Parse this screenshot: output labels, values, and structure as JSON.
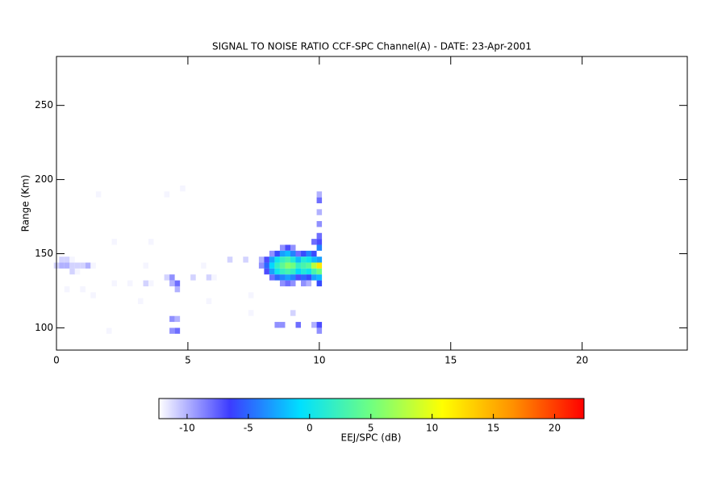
{
  "chart_data": {
    "type": "heatmap",
    "title": "SIGNAL TO NOISE RATIO CCF-SPC Channel(A) - DATE: 23-Apr-2001",
    "ylabel": "Range (Km)",
    "colorbar_label": "EEJ/SPC (dB)",
    "xlim": [
      0,
      24
    ],
    "xticks": [
      0,
      5,
      10,
      15,
      20
    ],
    "ylim": [
      85,
      283
    ],
    "yticks": [
      100,
      150,
      200,
      250
    ],
    "clim": [
      -12.3,
      22.4
    ],
    "cticks": [
      -10,
      -5,
      0,
      5,
      10,
      15,
      20
    ],
    "colormap": [
      "#ffffff",
      "#3c3cff",
      "#00e0ff",
      "#70ff80",
      "#ffff00",
      "#ff9000",
      "#ff0000"
    ],
    "x": [
      1.6,
      4.2,
      10.0,
      4.8,
      10.0,
      10.0,
      10.0,
      10.0,
      2.2,
      3.6,
      9.8,
      10.0,
      8.6,
      8.8,
      9.0,
      10.0,
      8.2,
      8.4,
      8.6,
      8.8,
      9.0,
      9.2,
      9.4,
      9.6,
      9.8,
      0.2,
      0.4,
      0.6,
      6.6,
      7.2,
      7.8,
      8.0,
      8.2,
      8.4,
      8.6,
      8.8,
      9.0,
      9.2,
      9.4,
      9.6,
      9.8,
      10.0,
      0.0,
      0.2,
      0.4,
      0.6,
      0.8,
      1.0,
      1.2,
      1.4,
      3.4,
      5.6,
      7.8,
      8.0,
      8.2,
      8.4,
      8.6,
      8.8,
      9.0,
      9.2,
      9.4,
      9.6,
      9.8,
      10.0,
      0.6,
      0.8,
      8.0,
      8.2,
      8.4,
      8.6,
      8.8,
      9.0,
      9.2,
      9.4,
      9.6,
      9.8,
      10.0,
      4.2,
      4.4,
      5.2,
      5.8,
      6.0,
      8.2,
      8.4,
      8.6,
      8.8,
      9.0,
      9.2,
      9.4,
      9.6,
      9.8,
      10.0,
      2.2,
      2.8,
      3.4,
      3.6,
      4.4,
      4.6,
      8.6,
      8.8,
      9.0,
      9.4,
      9.6,
      10.0,
      0.4,
      1.0,
      4.6,
      1.4,
      7.4,
      3.2,
      5.8,
      7.4,
      9.0,
      4.4,
      4.6,
      8.4,
      8.6,
      9.2,
      9.8,
      10.0,
      2.0,
      4.4,
      4.6,
      10.0
    ],
    "y": [
      190,
      190,
      190,
      194,
      186,
      178,
      170,
      162,
      158,
      158,
      158,
      158,
      154,
      154,
      154,
      154,
      150,
      150,
      150,
      150,
      150,
      150,
      150,
      150,
      150,
      146,
      146,
      146,
      146,
      146,
      146,
      146,
      146,
      146,
      146,
      146,
      146,
      146,
      146,
      146,
      146,
      146,
      142,
      142,
      142,
      142,
      142,
      142,
      142,
      142,
      142,
      142,
      142,
      142,
      142,
      142,
      142,
      142,
      142,
      142,
      142,
      142,
      142,
      142,
      138,
      138,
      138,
      138,
      138,
      138,
      138,
      138,
      138,
      138,
      138,
      138,
      138,
      134,
      134,
      134,
      134,
      134,
      134,
      134,
      134,
      134,
      134,
      134,
      134,
      134,
      134,
      134,
      130,
      130,
      130,
      130,
      130,
      130,
      130,
      130,
      130,
      130,
      130,
      130,
      126,
      126,
      126,
      122,
      122,
      118,
      118,
      110,
      110,
      106,
      106,
      102,
      102,
      102,
      102,
      102,
      98,
      98,
      98,
      98
    ],
    "values": [
      -12,
      -12,
      -10,
      -12,
      -8,
      -10,
      -9,
      -8,
      -12,
      -12,
      -8,
      -7,
      -9,
      -7,
      -9,
      -4,
      -9,
      -6,
      -3,
      -2,
      -4,
      -8,
      -6,
      -4,
      -6,
      -11,
      -11,
      -12,
      -11,
      -11,
      -10,
      -7,
      -3,
      0,
      2,
      3,
      1,
      -2,
      1,
      0,
      -2,
      -3,
      -11,
      -10,
      -10,
      -11,
      -11,
      -11,
      -10,
      -12,
      -12,
      -12,
      -9,
      -5,
      -1,
      2,
      4,
      6,
      5,
      2,
      3,
      4,
      8,
      12,
      -11,
      -12,
      -7,
      -3,
      0,
      2,
      3,
      2,
      -1,
      1,
      0,
      3,
      5,
      -11,
      -9,
      -11,
      -11,
      -12,
      -8,
      -5,
      -4,
      -3,
      -4,
      -7,
      -5,
      -6,
      -3,
      -2,
      -12,
      -12,
      -11,
      -12,
      -10,
      -8,
      -9,
      -8,
      -9,
      -9,
      -10,
      -6,
      -12,
      -12,
      -10,
      -12,
      -12,
      -12,
      -12,
      -12,
      -11,
      -9,
      -10,
      -9,
      -9,
      -8,
      -10,
      -7,
      -12,
      -9,
      -8,
      -9
    ]
  }
}
